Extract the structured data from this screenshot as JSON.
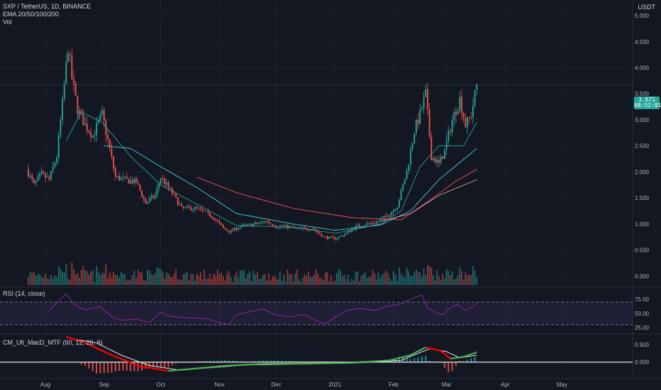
{
  "legend": {
    "symbol": "SXP / TetherUS, 1D, BINANCE",
    "ema": "EMA 20/50/100/200",
    "vol": "Vol"
  },
  "currency_label": "USDT",
  "last_price": {
    "value": "3.671",
    "countdown": "08:52:01"
  },
  "rsi_label": "RSI (14, close)",
  "macd_label": "CM_Ult_MacD_MTF (60, 12, 26, 9)",
  "colors": {
    "background": "#131722",
    "up": "#26a69a",
    "down": "#ef5350",
    "grid": "#1e222d",
    "ema20": "#26a69a",
    "ema50": "#4dd0e1",
    "ema100": "#ef5350",
    "ema200": "#d8a0a0",
    "rsi": "#9c27b0",
    "rsi_band": "#7e57c2",
    "macd_up": "#4caf50",
    "macd_down": "#ff0000",
    "signal": "#ffffff",
    "hist_up": "#26a69a",
    "hist_down": "#ef5350"
  },
  "chart_data": [
    {
      "type": "candlestick",
      "title": "SXP / TetherUS, 1D, BINANCE",
      "x_ticks": [
        "Aug",
        "Sep",
        "Oct",
        "Nov",
        "Dec",
        "2021",
        "Feb",
        "Mar",
        "Apr",
        "May"
      ],
      "y_ticks": [
        "5.000",
        "4.500",
        "4.000",
        "3.500",
        "3.000",
        "2.500",
        "2.000",
        "1.500",
        "1.000",
        "0.500",
        "0.000"
      ],
      "ylim": [
        -0.2,
        5.3
      ],
      "x_range": [
        "2020-07-20",
        "2021-05-20"
      ],
      "close_anchors": [
        [
          "2020-07-22",
          2.05
        ],
        [
          "2020-07-26",
          1.75
        ],
        [
          "2020-07-30",
          1.95
        ],
        [
          "2020-08-03",
          1.85
        ],
        [
          "2020-08-07",
          2.3
        ],
        [
          "2020-08-10",
          3.3
        ],
        [
          "2020-08-13",
          4.4
        ],
        [
          "2020-08-15",
          3.8
        ],
        [
          "2020-08-18",
          3.2
        ],
        [
          "2020-08-22",
          2.9
        ],
        [
          "2020-08-26",
          2.7
        ],
        [
          "2020-08-31",
          3.1
        ],
        [
          "2020-09-03",
          2.6
        ],
        [
          "2020-09-07",
          1.9
        ],
        [
          "2020-09-12",
          1.85
        ],
        [
          "2020-09-18",
          1.8
        ],
        [
          "2020-09-23",
          1.4
        ],
        [
          "2020-09-28",
          1.55
        ],
        [
          "2020-10-01",
          1.9
        ],
        [
          "2020-10-06",
          1.65
        ],
        [
          "2020-10-12",
          1.3
        ],
        [
          "2020-10-20",
          1.3
        ],
        [
          "2020-10-28",
          1.15
        ],
        [
          "2020-11-03",
          0.92
        ],
        [
          "2020-11-06",
          0.85
        ],
        [
          "2020-11-12",
          0.95
        ],
        [
          "2020-11-20",
          1.0
        ],
        [
          "2020-11-26",
          1.05
        ],
        [
          "2020-12-01",
          0.95
        ],
        [
          "2020-12-06",
          0.95
        ],
        [
          "2020-12-14",
          0.9
        ],
        [
          "2020-12-20",
          0.92
        ],
        [
          "2020-12-26",
          0.75
        ],
        [
          "2021-01-01",
          0.72
        ],
        [
          "2021-01-06",
          0.8
        ],
        [
          "2021-01-12",
          0.95
        ],
        [
          "2021-01-18",
          1.0
        ],
        [
          "2021-01-24",
          1.05
        ],
        [
          "2021-01-30",
          1.2
        ],
        [
          "2021-02-03",
          1.35
        ],
        [
          "2021-02-08",
          2.0
        ],
        [
          "2021-02-12",
          2.8
        ],
        [
          "2021-02-15",
          3.1
        ],
        [
          "2021-02-18",
          3.5
        ],
        [
          "2021-02-21",
          2.3
        ],
        [
          "2021-02-25",
          2.15
        ],
        [
          "2021-02-28",
          2.4
        ],
        [
          "2021-03-04",
          3.0
        ],
        [
          "2021-03-08",
          3.4
        ],
        [
          "2021-03-11",
          2.9
        ],
        [
          "2021-03-14",
          3.1
        ],
        [
          "2021-03-17",
          3.67
        ]
      ],
      "ema_series": [
        {
          "name": "EMA 20",
          "points": [
            [
              "2020-08-12",
              2.6
            ],
            [
              "2020-08-20",
              3.15
            ],
            [
              "2020-08-31",
              2.95
            ],
            [
              "2020-09-15",
              2.3
            ],
            [
              "2020-10-01",
              1.75
            ],
            [
              "2020-10-20",
              1.38
            ],
            [
              "2020-11-10",
              0.97
            ],
            [
              "2020-12-10",
              0.94
            ],
            [
              "2021-01-01",
              0.82
            ],
            [
              "2021-01-25",
              1.0
            ],
            [
              "2021-02-05",
              1.25
            ],
            [
              "2021-02-15",
              2.1
            ],
            [
              "2021-02-25",
              2.5
            ],
            [
              "2021-03-10",
              2.5
            ],
            [
              "2021-03-17",
              2.95
            ]
          ]
        },
        {
          "name": "EMA 50",
          "points": [
            [
              "2020-09-01",
              2.5
            ],
            [
              "2020-09-15",
              2.45
            ],
            [
              "2020-10-01",
              2.1
            ],
            [
              "2020-10-20",
              1.7
            ],
            [
              "2020-11-10",
              1.2
            ],
            [
              "2020-12-10",
              1.0
            ],
            [
              "2021-01-01",
              0.88
            ],
            [
              "2021-01-25",
              0.98
            ],
            [
              "2021-02-10",
              1.25
            ],
            [
              "2021-02-25",
              1.85
            ],
            [
              "2021-03-17",
              2.45
            ]
          ]
        },
        {
          "name": "EMA 100",
          "points": [
            [
              "2020-10-20",
              1.9
            ],
            [
              "2020-11-10",
              1.6
            ],
            [
              "2020-12-10",
              1.3
            ],
            [
              "2021-01-10",
              1.12
            ],
            [
              "2021-02-05",
              1.08
            ],
            [
              "2021-02-20",
              1.45
            ],
            [
              "2021-03-05",
              1.8
            ],
            [
              "2021-03-17",
              2.05
            ]
          ]
        },
        {
          "name": "EMA 200",
          "points": [
            [
              "2021-01-25",
              1.05
            ],
            [
              "2021-02-10",
              1.2
            ],
            [
              "2021-02-25",
              1.55
            ],
            [
              "2021-03-17",
              1.85
            ]
          ]
        }
      ]
    },
    {
      "type": "line",
      "title": "RSI (14, close)",
      "y_ticks": [
        "75.00",
        "50.00",
        "25.00"
      ],
      "ylim": [
        15,
        95
      ],
      "bands": [
        70,
        30
      ],
      "series": [
        {
          "name": "RSI",
          "points": [
            [
              "2020-08-03",
              55
            ],
            [
              "2020-08-08",
              72
            ],
            [
              "2020-08-12",
              85
            ],
            [
              "2020-08-16",
              66
            ],
            [
              "2020-08-22",
              56
            ],
            [
              "2020-08-30",
              62
            ],
            [
              "2020-09-05",
              44
            ],
            [
              "2020-09-10",
              38
            ],
            [
              "2020-09-18",
              40
            ],
            [
              "2020-09-25",
              34
            ],
            [
              "2020-10-01",
              52
            ],
            [
              "2020-10-06",
              45
            ],
            [
              "2020-10-15",
              42
            ],
            [
              "2020-10-25",
              41
            ],
            [
              "2020-11-02",
              33
            ],
            [
              "2020-11-06",
              30
            ],
            [
              "2020-11-10",
              48
            ],
            [
              "2020-11-16",
              52
            ],
            [
              "2020-11-24",
              58
            ],
            [
              "2020-12-01",
              47
            ],
            [
              "2020-12-08",
              44
            ],
            [
              "2020-12-16",
              48
            ],
            [
              "2020-12-22",
              37
            ],
            [
              "2020-12-27",
              32
            ],
            [
              "2021-01-02",
              45
            ],
            [
              "2021-01-08",
              56
            ],
            [
              "2021-01-15",
              59
            ],
            [
              "2021-01-22",
              55
            ],
            [
              "2021-01-29",
              63
            ],
            [
              "2021-02-05",
              67
            ],
            [
              "2021-02-12",
              78
            ],
            [
              "2021-02-16",
              82
            ],
            [
              "2021-02-19",
              60
            ],
            [
              "2021-02-23",
              52
            ],
            [
              "2021-02-27",
              48
            ],
            [
              "2021-03-03",
              60
            ],
            [
              "2021-03-07",
              66
            ],
            [
              "2021-03-11",
              55
            ],
            [
              "2021-03-15",
              62
            ],
            [
              "2021-03-17",
              68
            ]
          ]
        }
      ]
    },
    {
      "type": "line",
      "title": "CM_Ult_MacD_MTF (60, 12, 26, 9)",
      "y_ticks": [
        "0.500",
        "0.000"
      ],
      "ylim": [
        -0.45,
        0.78
      ],
      "series": [
        {
          "name": "MACD",
          "points": [
            [
              "2020-08-12",
              0.72
            ],
            [
              "2020-08-22",
              0.55
            ],
            [
              "2020-09-05",
              0.2
            ],
            [
              "2020-09-20",
              -0.12
            ],
            [
              "2020-10-05",
              -0.25
            ],
            [
              "2020-10-20",
              -0.18
            ],
            [
              "2020-11-05",
              -0.1
            ],
            [
              "2020-11-25",
              -0.05
            ],
            [
              "2020-12-20",
              -0.04
            ],
            [
              "2021-01-10",
              -0.02
            ],
            [
              "2021-01-30",
              0.05
            ],
            [
              "2021-02-10",
              0.2
            ],
            [
              "2021-02-18",
              0.42
            ],
            [
              "2021-02-26",
              0.32
            ],
            [
              "2021-03-03",
              0.1
            ],
            [
              "2021-03-10",
              0.15
            ],
            [
              "2021-03-17",
              0.28
            ]
          ]
        },
        {
          "name": "Signal",
          "points": [
            [
              "2020-08-16",
              0.65
            ],
            [
              "2020-08-28",
              0.55
            ],
            [
              "2020-09-10",
              0.2
            ],
            [
              "2020-09-25",
              -0.1
            ],
            [
              "2020-10-10",
              -0.22
            ],
            [
              "2020-10-25",
              -0.17
            ],
            [
              "2020-11-15",
              -0.08
            ],
            [
              "2020-12-20",
              -0.05
            ],
            [
              "2021-01-15",
              -0.02
            ],
            [
              "2021-02-05",
              0.05
            ],
            [
              "2021-02-20",
              0.38
            ],
            [
              "2021-03-01",
              0.3
            ],
            [
              "2021-03-08",
              0.12
            ],
            [
              "2021-03-17",
              0.2
            ]
          ]
        }
      ]
    }
  ]
}
